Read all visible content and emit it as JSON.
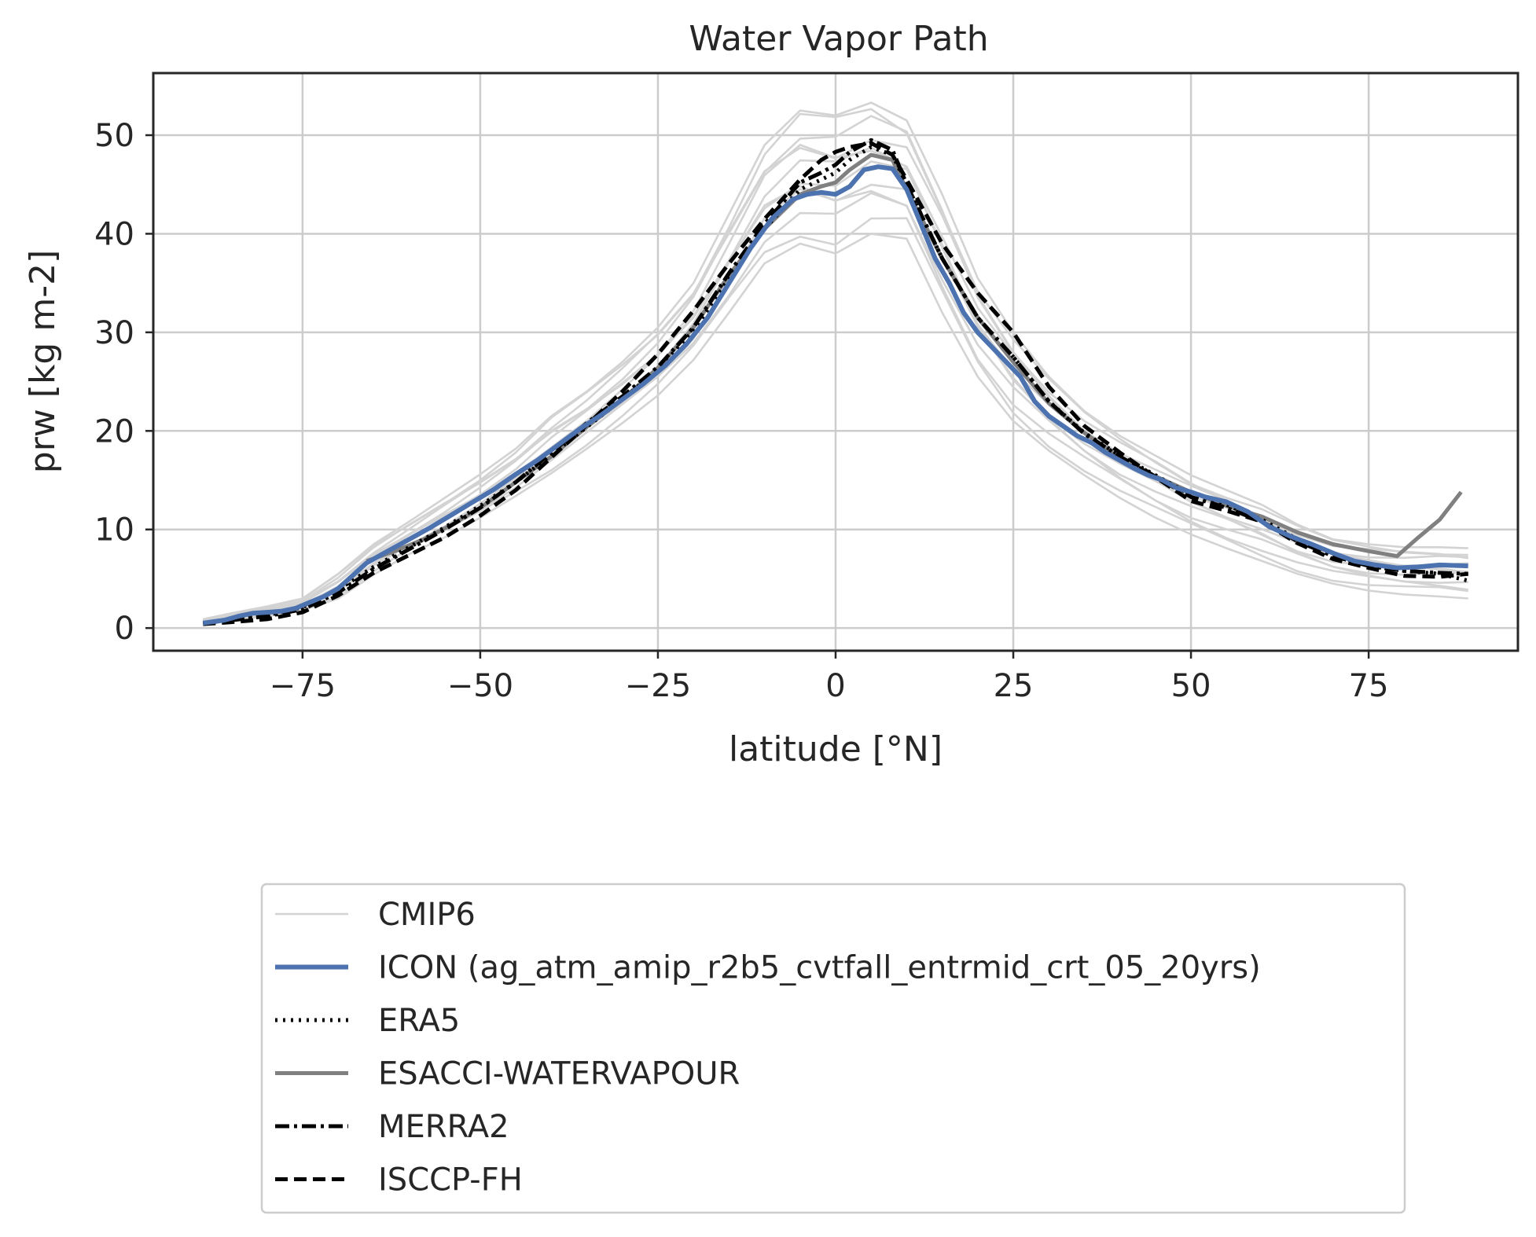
{
  "chart_data": {
    "type": "line",
    "title": "Water Vapor Path",
    "xlabel": "latitude [°N]",
    "ylabel": "prw [kg m-2]",
    "xlim": [
      -96,
      96
    ],
    "ylim": [
      -2.3,
      56.3
    ],
    "xticks": [
      -75,
      -50,
      -25,
      0,
      25,
      50,
      75
    ],
    "xtick_labels": [
      "−75",
      "−50",
      "−25",
      "0",
      "25",
      "50",
      "75"
    ],
    "yticks": [
      0,
      10,
      20,
      30,
      40,
      50
    ],
    "ytick_labels": [
      "0",
      "10",
      "20",
      "30",
      "40",
      "50"
    ],
    "grid": true,
    "legend_position": "below the plot, centered",
    "cmip6_envelope": {
      "x": [
        -89,
        -85,
        -80,
        -75,
        -70,
        -65,
        -60,
        -55,
        -50,
        -45,
        -40,
        -35,
        -30,
        -25,
        -20,
        -15,
        -10,
        -5,
        0,
        5,
        10,
        15,
        20,
        25,
        30,
        35,
        40,
        45,
        50,
        55,
        60,
        65,
        70,
        75,
        80,
        85,
        89
      ],
      "low": [
        0.4,
        0.8,
        1.2,
        1.8,
        3.0,
        5.4,
        7.5,
        9.2,
        11.2,
        13.4,
        15.7,
        18.2,
        20.8,
        23.6,
        27.2,
        32.0,
        37.0,
        39.0,
        38.0,
        40.0,
        39.5,
        32.0,
        25.5,
        21.0,
        18.0,
        15.5,
        13.2,
        11.2,
        9.5,
        8.1,
        6.8,
        5.5,
        4.5,
        3.8,
        3.4,
        3.2,
        3.0
      ],
      "high": [
        0.9,
        1.5,
        2.2,
        3.0,
        5.5,
        8.5,
        10.8,
        13.2,
        15.6,
        18.2,
        21.5,
        24.0,
        27.0,
        30.5,
        35.0,
        42.0,
        49.0,
        52.5,
        52.0,
        53.3,
        51.5,
        44.0,
        35.5,
        30.0,
        25.5,
        22.0,
        19.5,
        17.5,
        15.5,
        14.0,
        12.5,
        10.5,
        9.0,
        8.5,
        8.2,
        8.2,
        8.1
      ]
    },
    "series": [
      {
        "name": "CMIP6",
        "color": "#d3d3d3",
        "dash": "solid",
        "x": [
          -89,
          -85,
          -80,
          -75,
          -70,
          -65,
          -60,
          -55,
          -50,
          -45,
          -40,
          -35,
          -30,
          -25,
          -20,
          -15,
          -10,
          -5,
          0,
          5,
          10,
          15,
          20,
          25,
          30,
          35,
          40,
          45,
          50,
          55,
          60,
          65,
          70,
          75,
          80,
          85,
          89
        ],
        "y": [
          0.6,
          1.1,
          1.6,
          2.3,
          4.0,
          6.8,
          8.8,
          10.8,
          13.0,
          15.5,
          18.2,
          21.0,
          23.8,
          27.0,
          31.0,
          36.5,
          42.0,
          45.5,
          46.0,
          47.5,
          45.5,
          38.5,
          31.0,
          26.0,
          22.0,
          19.0,
          16.5,
          14.5,
          12.5,
          11.0,
          9.8,
          8.2,
          6.8,
          6.2,
          5.8,
          5.7,
          5.6
        ]
      },
      {
        "name": "ICON (ag_atm_amip_r2b5_cvtfall_entrmid_crt_05_20yrs)",
        "color": "#4c72b0",
        "dash": "solid",
        "x": [
          -89,
          -86,
          -84,
          -82,
          -80,
          -78,
          -76,
          -74,
          -72,
          -70,
          -68,
          -66,
          -64,
          -62,
          -60,
          -57,
          -54,
          -51,
          -48,
          -45,
          -42,
          -39,
          -36,
          -33,
          -30,
          -27,
          -24,
          -21,
          -18,
          -15,
          -12,
          -9,
          -6,
          -4,
          -2,
          0,
          2,
          4,
          6,
          8,
          10,
          12,
          14,
          16,
          18,
          20,
          22,
          24,
          26,
          28,
          30,
          32,
          34,
          36,
          38,
          40,
          42,
          44,
          46,
          48,
          50,
          52,
          55,
          58,
          61,
          64,
          67,
          70,
          73,
          76,
          79,
          82,
          85,
          89
        ],
        "y": [
          0.5,
          0.8,
          1.2,
          1.5,
          1.6,
          1.7,
          2.0,
          2.6,
          3.2,
          4.0,
          5.3,
          6.6,
          7.4,
          8.2,
          9.0,
          10.2,
          11.5,
          12.8,
          14.1,
          15.6,
          17.0,
          18.6,
          20.2,
          21.6,
          23.2,
          24.8,
          26.6,
          28.8,
          31.5,
          35.0,
          38.5,
          41.5,
          43.5,
          44.0,
          44.2,
          44.0,
          44.8,
          46.5,
          46.8,
          46.6,
          44.5,
          41.0,
          37.5,
          35.0,
          32.0,
          30.0,
          28.5,
          27.0,
          25.5,
          23.0,
          21.5,
          20.5,
          19.5,
          18.8,
          17.8,
          17.0,
          16.2,
          15.5,
          15.0,
          14.2,
          13.8,
          13.3,
          12.8,
          11.8,
          10.3,
          9.3,
          8.5,
          7.6,
          6.8,
          6.4,
          6.1,
          6.2,
          6.4,
          6.3
        ]
      },
      {
        "name": "ERA5",
        "color": "#000000",
        "dash": "dotted",
        "x": [
          -89,
          -85,
          -80,
          -75,
          -70,
          -65,
          -60,
          -55,
          -50,
          -45,
          -40,
          -35,
          -30,
          -25,
          -20,
          -15,
          -10,
          -5,
          -2,
          0,
          2,
          5,
          8,
          10,
          15,
          20,
          25,
          30,
          35,
          40,
          45,
          50,
          55,
          60,
          65,
          70,
          75,
          80,
          85,
          89
        ],
        "y": [
          0.5,
          0.9,
          1.3,
          2.1,
          3.9,
          6.2,
          8.2,
          10.2,
          12.4,
          14.8,
          17.6,
          20.4,
          23.2,
          26.2,
          30.2,
          35.5,
          40.5,
          44.5,
          45.5,
          46.2,
          47.5,
          48.8,
          48.0,
          45.0,
          37.5,
          31.5,
          27.5,
          23.0,
          19.8,
          17.5,
          15.5,
          13.5,
          12.5,
          11.0,
          9.0,
          7.4,
          6.3,
          5.8,
          5.5,
          4.8
        ]
      },
      {
        "name": "ESACCI-WATERVAPOUR",
        "color": "#808080",
        "dash": "solid",
        "x": [
          -66,
          -62,
          -58,
          -54,
          -50,
          -45,
          -40,
          -35,
          -30,
          -25,
          -20,
          -15,
          -10,
          -5,
          -2,
          0,
          2,
          5,
          8,
          10,
          15,
          20,
          25,
          30,
          35,
          40,
          45,
          50,
          55,
          60,
          65,
          70,
          75,
          79,
          82,
          85,
          88
        ],
        "y": [
          6.8,
          7.8,
          9.0,
          10.5,
          12.2,
          14.8,
          17.4,
          20.4,
          23.2,
          26.4,
          30.5,
          35.8,
          40.5,
          44.0,
          44.8,
          45.2,
          46.5,
          48.0,
          47.5,
          44.5,
          37.5,
          31.5,
          27.0,
          22.8,
          19.8,
          17.3,
          15.4,
          13.8,
          12.4,
          11.3,
          9.7,
          8.5,
          7.8,
          7.3,
          9.2,
          11.0,
          13.8
        ]
      },
      {
        "name": "MERRA2",
        "color": "#000000",
        "dash": "dashdot",
        "x": [
          -89,
          -85,
          -80,
          -75,
          -70,
          -65,
          -60,
          -55,
          -50,
          -45,
          -40,
          -35,
          -30,
          -25,
          -20,
          -15,
          -10,
          -5,
          -2,
          0,
          2,
          5,
          8,
          10,
          15,
          20,
          25,
          30,
          35,
          40,
          45,
          50,
          55,
          60,
          65,
          70,
          75,
          80,
          85,
          89
        ],
        "y": [
          0.5,
          0.8,
          1.2,
          1.9,
          3.6,
          6.0,
          8.0,
          10.0,
          12.2,
          14.8,
          17.8,
          20.8,
          23.5,
          26.5,
          30.5,
          36.0,
          41.0,
          45.2,
          46.2,
          47.0,
          48.3,
          49.5,
          48.5,
          45.0,
          37.5,
          31.5,
          27.5,
          23.0,
          19.7,
          17.4,
          15.3,
          13.3,
          12.2,
          10.8,
          8.8,
          7.3,
          6.3,
          5.8,
          5.6,
          5.5
        ]
      },
      {
        "name": "ISCCP-FH",
        "color": "#000000",
        "dash": "dashed",
        "x": [
          -89,
          -85,
          -80,
          -75,
          -70,
          -65,
          -60,
          -55,
          -50,
          -45,
          -40,
          -35,
          -30,
          -25,
          -20,
          -15,
          -10,
          -5,
          -2,
          0,
          2,
          5,
          8,
          10,
          15,
          20,
          25,
          30,
          35,
          40,
          45,
          50,
          55,
          60,
          65,
          70,
          75,
          80,
          85,
          89
        ],
        "y": [
          0.4,
          0.6,
          0.9,
          1.6,
          3.3,
          5.6,
          7.4,
          9.2,
          11.4,
          14.0,
          17.3,
          20.6,
          24.0,
          27.8,
          32.2,
          37.0,
          41.5,
          45.5,
          47.5,
          48.3,
          48.8,
          49.2,
          48.0,
          45.5,
          39.0,
          34.0,
          30.0,
          24.5,
          20.5,
          17.8,
          15.3,
          12.9,
          11.9,
          10.8,
          8.6,
          7.0,
          6.1,
          5.3,
          5.2,
          5.5
        ]
      }
    ]
  }
}
